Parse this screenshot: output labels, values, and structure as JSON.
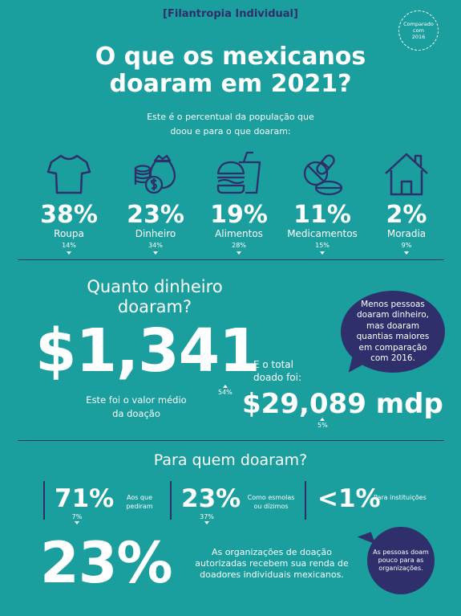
{
  "header": {
    "tag": "[Filantropia Individual]",
    "badge_lines": [
      "Comparado",
      "com",
      "2016"
    ]
  },
  "hero": {
    "title_line1": "O que os mexicanos",
    "title_line2": "doaram em 2021?",
    "intro_line1": "Este é o percentual da população que",
    "intro_line2": "doou e para o que doaram:"
  },
  "categories": [
    {
      "icon": "shirt-icon",
      "percent": "38%",
      "label": "Roupa",
      "compare": "14%"
    },
    {
      "icon": "money-bag-icon",
      "percent": "23%",
      "label": "Dinheiro",
      "compare": "34%"
    },
    {
      "icon": "fast-food-icon",
      "percent": "19%",
      "label": "Alimentos",
      "compare": "28%"
    },
    {
      "icon": "pills-icon",
      "percent": "11%",
      "label": "Medicamentos",
      "compare": "15%"
    },
    {
      "icon": "house-icon",
      "percent": "2%",
      "label": "Moradia",
      "compare": "9%"
    }
  ],
  "money": {
    "question_line1": "Quanto dinheiro",
    "question_line2": "doaram?",
    "average": "$1,341",
    "average_compare": "54%",
    "average_desc_line1": "Este foi o valor médio",
    "average_desc_line2": "da doação",
    "bubble_lines": [
      "Menos pessoas",
      "doaram dinheiro,",
      "mas doaram",
      "quantias maiores",
      "em comparação",
      "com 2016."
    ],
    "total_label_line1": "E o total",
    "total_label_line2": "doado foi:",
    "total": "$29,089 mdp",
    "total_compare": "5%"
  },
  "recipients": {
    "question": "Para quem doaram?",
    "items": [
      {
        "percent": "71%",
        "label_line1": "Aos que",
        "label_line2": "pediram",
        "compare": "7%"
      },
      {
        "percent": "23%",
        "label_line1": "Como esmolas",
        "label_line2": "ou dízimos",
        "compare": "37%"
      },
      {
        "percent": "<1%",
        "label_line1": "Para instituições",
        "label_line2": "",
        "compare": ""
      }
    ]
  },
  "organizations": {
    "percent": "23%",
    "desc_line1": "As organizações de doação",
    "desc_line2": "autorizadas recebem sua renda de",
    "desc_line3": "doadores individuais mexicanos.",
    "bubble_lines": [
      "As pessoas doam",
      "pouco para as",
      "organizações."
    ]
  },
  "colors": {
    "background": "#1a9e9e",
    "accent": "#2f2f6b",
    "text": "#ffffff"
  }
}
